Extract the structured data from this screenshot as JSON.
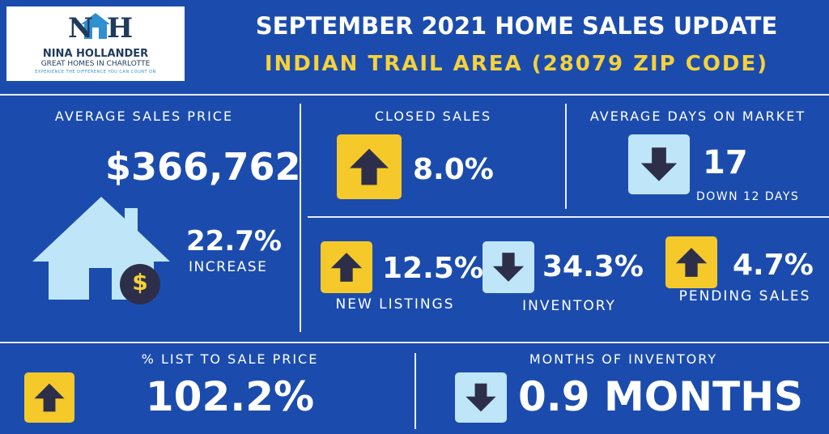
{
  "header": {
    "title": "SEPTEMBER 2021 HOME SALES UPDATE",
    "subtitle": "INDIAN TRAIL AREA (28079 ZIP CODE)"
  },
  "logo": {
    "monogram_left": "N",
    "monogram_right": "H",
    "name": "NINA HOLLANDER",
    "tagline": "GREAT HOMES IN CHARLOTTE",
    "slogan": "EXPERIENCE THE DIFFERENCE YOU CAN COUNT ON"
  },
  "average_sales_price": {
    "label": "AVERAGE SALES PRICE",
    "value": "$366,762",
    "change": "22.7%",
    "change_label": "INCREASE",
    "icon_symbol": "$"
  },
  "closed_sales": {
    "label": "CLOSED SALES",
    "value": "8.0%",
    "direction": "up"
  },
  "average_days_on_market": {
    "label": "AVERAGE DAYS ON MARKET",
    "value": "17",
    "note": "DOWN 12 DAYS",
    "direction": "down"
  },
  "new_listings": {
    "label": "NEW LISTINGS",
    "value": "12.5%",
    "direction": "up"
  },
  "inventory": {
    "label": "INVENTORY",
    "value": "34.3%",
    "direction": "down"
  },
  "pending_sales": {
    "label": "PENDING SALES",
    "value": "4.7%",
    "direction": "up"
  },
  "list_to_sale_price": {
    "label": "% LIST TO SALE PRICE",
    "value": "102.2%",
    "direction": "up"
  },
  "months_of_inventory": {
    "label": "MONTHS OF INVENTORY",
    "value": "0.9 MONTHS",
    "direction": "down"
  }
}
